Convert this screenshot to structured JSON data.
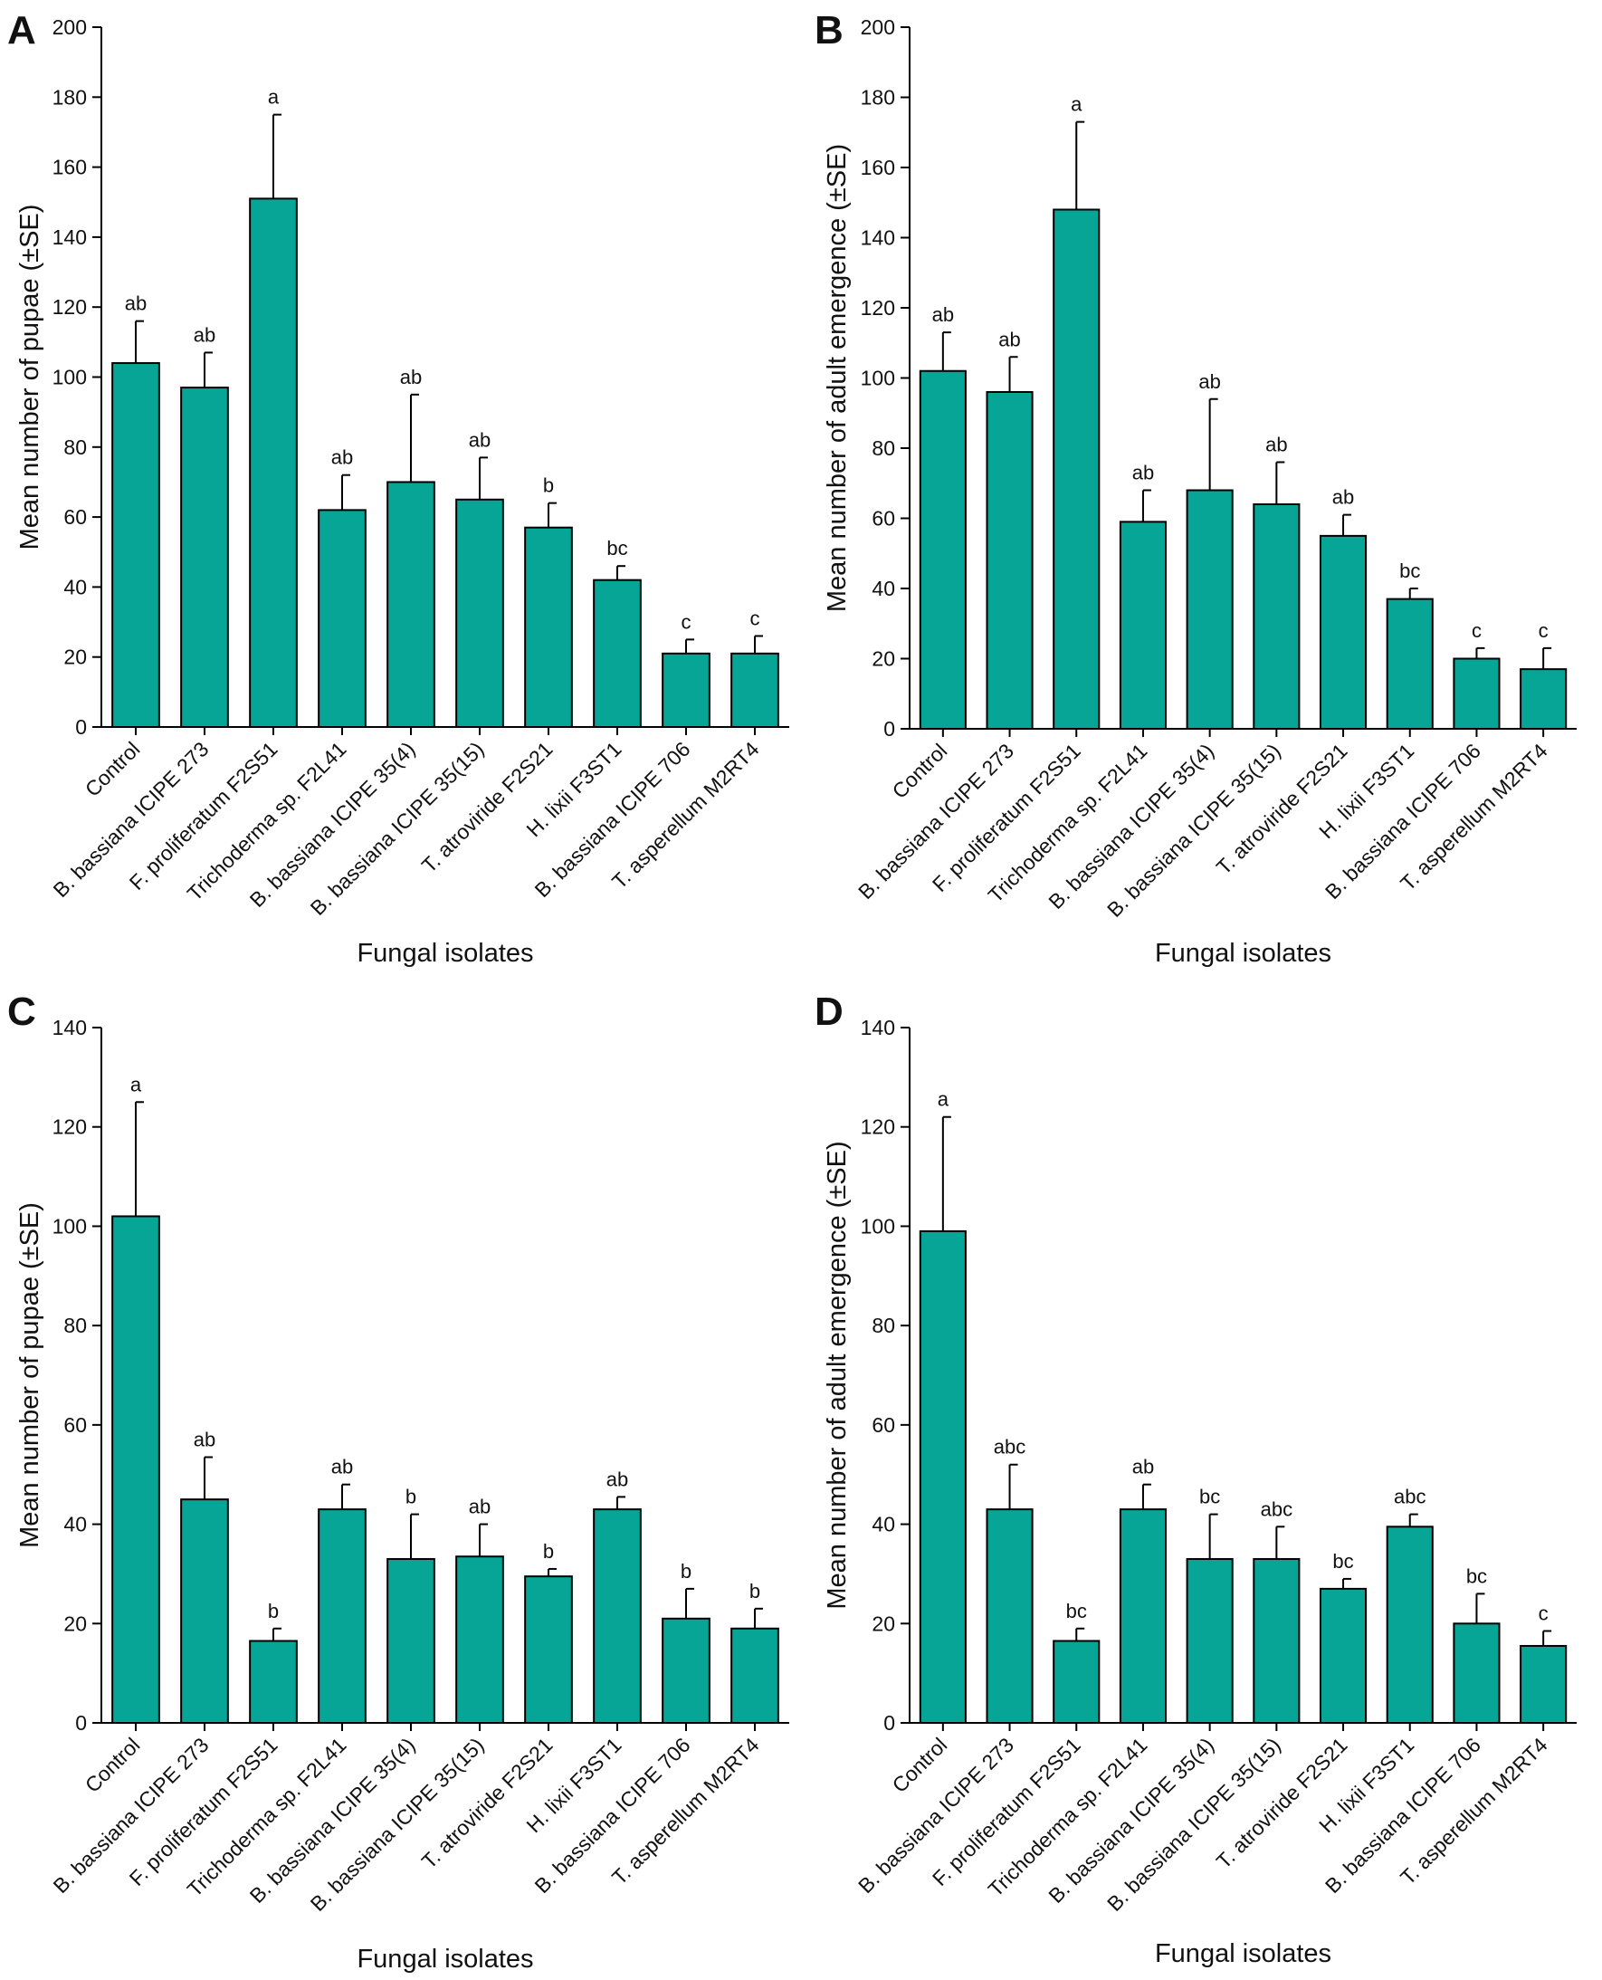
{
  "colors": {
    "bar_fill": "#06A596",
    "bar_stroke": "#000000",
    "axis": "#000000"
  },
  "chart_data": [
    {
      "panel": "A",
      "type": "bar",
      "xlabel": "Fungal isolates",
      "ylabel": "Mean number of pupae (±SE)",
      "ylim": [
        0,
        200
      ],
      "yticks": [
        0,
        20,
        40,
        60,
        80,
        100,
        120,
        140,
        160,
        180,
        200
      ],
      "categories": [
        "Control",
        "B. bassiana ICIPE 273",
        "F. proliferatum F2S51",
        "Trichoderma sp. F2L41",
        "B. bassiana ICIPE 35(4)",
        "B. bassiana ICIPE 35(15)",
        "T. atroviride F2S21",
        "H. lixii F3ST1",
        "B. bassiana ICIPE 706",
        "T. asperellum M2RT4"
      ],
      "values": [
        104,
        97,
        151,
        62,
        70,
        65,
        57,
        42,
        21,
        21
      ],
      "errors": [
        12,
        10,
        24,
        10,
        25,
        12,
        7,
        4,
        4,
        5
      ],
      "significance": [
        "ab",
        "ab",
        "a",
        "ab",
        "ab",
        "ab",
        "b",
        "bc",
        "c",
        "c"
      ]
    },
    {
      "panel": "B",
      "type": "bar",
      "xlabel": "Fungal isolates",
      "ylabel": "Mean number of adult emergence (±SE)",
      "ylim": [
        0,
        200
      ],
      "yticks": [
        0,
        20,
        40,
        60,
        80,
        100,
        120,
        140,
        160,
        180,
        200
      ],
      "categories": [
        "Control",
        "B. bassiana ICIPE 273",
        "F. proliferatum F2S51",
        "Trichoderma sp. F2L41",
        "B. bassiana ICIPE 35(4)",
        "B. bassiana ICIPE 35(15)",
        "T. atroviride F2S21",
        "H. lixii F3ST1",
        "B. bassiana ICIPE 706",
        "T. asperellum M2RT4"
      ],
      "values": [
        102,
        96,
        148,
        59,
        68,
        64,
        55,
        37,
        20,
        17
      ],
      "errors": [
        11,
        10,
        25,
        9,
        26,
        12,
        6,
        3,
        3,
        6
      ],
      "significance": [
        "ab",
        "ab",
        "a",
        "ab",
        "ab",
        "ab",
        "ab",
        "bc",
        "c",
        "c"
      ]
    },
    {
      "panel": "C",
      "type": "bar",
      "xlabel": "Fungal isolates",
      "ylabel": "Mean number of pupae (±SE)",
      "ylim": [
        0,
        140
      ],
      "yticks": [
        0,
        20,
        40,
        60,
        80,
        100,
        120,
        140
      ],
      "categories": [
        "Control",
        "B. bassiana ICIPE 273",
        "F. proliferatum F2S51",
        "Trichoderma sp. F2L41",
        "B. bassiana ICIPE 35(4)",
        "B. bassiana ICIPE 35(15)",
        "T. atroviride F2S21",
        "H. lixii F3ST1",
        "B. bassiana ICIPE 706",
        "T. asperellum M2RT4"
      ],
      "values": [
        102,
        45,
        16.5,
        43,
        33,
        33.5,
        29.5,
        43,
        21,
        19
      ],
      "errors": [
        23,
        8.5,
        2.5,
        5,
        9,
        6.5,
        1.5,
        2.5,
        6,
        4
      ],
      "significance": [
        "a",
        "ab",
        "b",
        "ab",
        "b",
        "ab",
        "b",
        "ab",
        "b",
        "b"
      ]
    },
    {
      "panel": "D",
      "type": "bar",
      "xlabel": "Fungal isolates",
      "ylabel": "Mean number of adult emergence (±SE)",
      "ylim": [
        0,
        140
      ],
      "yticks": [
        0,
        20,
        40,
        60,
        80,
        100,
        120,
        140
      ],
      "categories": [
        "Control",
        "B. bassiana ICIPE 273",
        "F. proliferatum F2S51",
        "Trichoderma sp. F2L41",
        "B. bassiana ICIPE 35(4)",
        "B. bassiana ICIPE 35(15)",
        "T. atroviride F2S21",
        "H. lixii F3ST1",
        "B. bassiana ICIPE 706",
        "T. asperellum M2RT4"
      ],
      "values": [
        99,
        43,
        16.5,
        43,
        33,
        33,
        27,
        39.5,
        20,
        15.5
      ],
      "errors": [
        23,
        9,
        2.5,
        5,
        9,
        6.5,
        2,
        2.5,
        6,
        3
      ],
      "significance": [
        "a",
        "abc",
        "bc",
        "ab",
        "bc",
        "abc",
        "bc",
        "abc",
        "bc",
        "c"
      ]
    }
  ]
}
